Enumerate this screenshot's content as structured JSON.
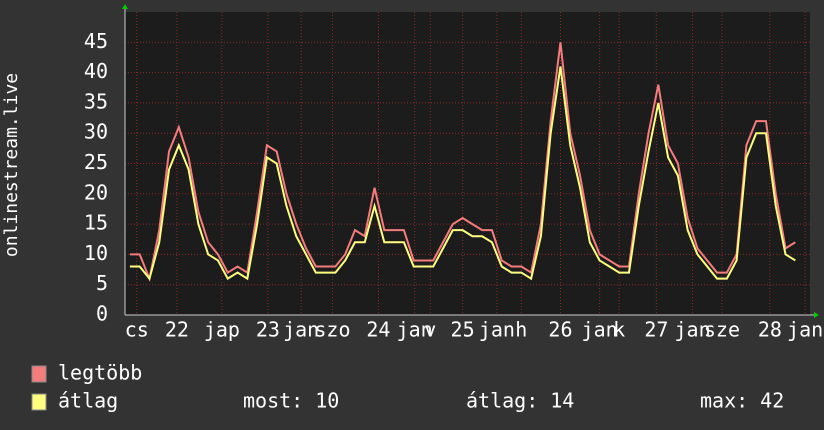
{
  "chart_data": {
    "type": "line",
    "y_label": "onlinestream.live",
    "xlim": [
      21.5,
      28.5
    ],
    "ylim": [
      0,
      50
    ],
    "yticks": [
      0,
      5,
      10,
      15,
      20,
      25,
      30,
      35,
      40,
      45
    ],
    "xticks": [
      {
        "value": 21.62,
        "label": "cs"
      },
      {
        "value": 22.03,
        "label": "22"
      },
      {
        "value": 22.49,
        "label": "jap"
      },
      {
        "value": 22.96,
        "label": "23"
      },
      {
        "value": 23.3,
        "label": "jan"
      },
      {
        "value": 23.62,
        "label": "szo"
      },
      {
        "value": 24.09,
        "label": "24"
      },
      {
        "value": 24.46,
        "label": "jan"
      },
      {
        "value": 24.62,
        "label": "v"
      },
      {
        "value": 24.95,
        "label": "25"
      },
      {
        "value": 25.3,
        "label": "jan"
      },
      {
        "value": 25.55,
        "label": "h"
      },
      {
        "value": 25.95,
        "label": "26"
      },
      {
        "value": 26.35,
        "label": "jan"
      },
      {
        "value": 26.55,
        "label": "k"
      },
      {
        "value": 26.93,
        "label": "27"
      },
      {
        "value": 27.3,
        "label": "jan"
      },
      {
        "value": 27.6,
        "label": "sze"
      },
      {
        "value": 28.09,
        "label": "28"
      },
      {
        "value": 28.45,
        "label": "jan"
      }
    ],
    "grid": true,
    "x": [
      21.55,
      21.65,
      21.75,
      21.85,
      21.95,
      22.05,
      22.15,
      22.25,
      22.35,
      22.45,
      22.55,
      22.65,
      22.75,
      22.85,
      22.95,
      23.05,
      23.15,
      23.25,
      23.35,
      23.45,
      23.55,
      23.65,
      23.75,
      23.85,
      23.95,
      24.05,
      24.15,
      24.25,
      24.35,
      24.45,
      24.55,
      24.65,
      24.75,
      24.85,
      24.95,
      25.05,
      25.15,
      25.25,
      25.35,
      25.45,
      25.55,
      25.65,
      25.75,
      25.85,
      25.95,
      26.05,
      26.15,
      26.25,
      26.35,
      26.45,
      26.55,
      26.65,
      26.75,
      26.85,
      26.95,
      27.05,
      27.15,
      27.25,
      27.35,
      27.45,
      27.55,
      27.65,
      27.75,
      27.85,
      27.95,
      28.05,
      28.15,
      28.25,
      28.35
    ],
    "series": [
      {
        "name": "legtöbb",
        "color": "#f47c7c",
        "values": [
          10,
          10,
          6,
          14,
          27,
          31,
          26,
          17,
          12,
          10,
          7,
          8,
          7,
          17,
          28,
          27,
          20,
          15,
          11,
          8,
          8,
          8,
          10,
          14,
          13,
          21,
          14,
          14,
          14,
          9,
          9,
          9,
          12,
          15,
          16,
          15,
          14,
          14,
          9,
          8,
          8,
          7,
          15,
          32,
          45,
          30,
          23,
          14,
          10,
          9,
          8,
          8,
          20,
          30,
          38,
          28,
          25,
          16,
          11,
          9,
          7,
          7,
          10,
          28,
          32,
          32,
          20,
          11,
          12
        ]
      },
      {
        "name": "átlag",
        "color": "#ffff80",
        "values": [
          8,
          8,
          6,
          12,
          24,
          28,
          24,
          15,
          10,
          9,
          6,
          7,
          6,
          15,
          26,
          25,
          18,
          13,
          10,
          7,
          7,
          7,
          9,
          12,
          12,
          18,
          12,
          12,
          12,
          8,
          8,
          8,
          11,
          14,
          14,
          13,
          13,
          12,
          8,
          7,
          7,
          6,
          13,
          30,
          41,
          28,
          21,
          12,
          9,
          8,
          7,
          7,
          18,
          27,
          35,
          26,
          23,
          14,
          10,
          8,
          6,
          6,
          9,
          26,
          30,
          30,
          18,
          10,
          9
        ]
      }
    ],
    "stats": [
      {
        "label": "most:",
        "value": 10
      },
      {
        "label": "átlag:",
        "value": 14
      },
      {
        "label": "max:",
        "value": 42
      }
    ]
  }
}
